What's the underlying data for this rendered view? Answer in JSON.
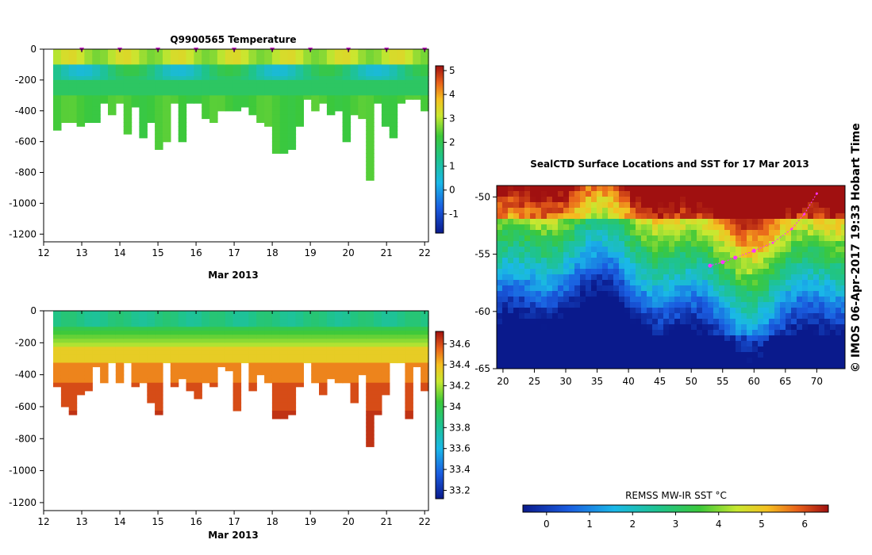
{
  "chart_data": [
    {
      "id": "temperature",
      "type": "heatmap",
      "title": "Q9900565  Temperature",
      "xlabel": "Mar 2013",
      "ylabel": "",
      "xlim": [
        12,
        22.1
      ],
      "ylim": [
        -1250,
        0
      ],
      "x_ticks": [
        "12",
        "13",
        "14",
        "15",
        "16",
        "17",
        "18",
        "19",
        "20",
        "21",
        "22"
      ],
      "y_ticks": [
        "0",
        "-200",
        "-400",
        "-600",
        "-800",
        "-1000",
        "-1200"
      ],
      "colorbar_ticks": [
        "5",
        "4",
        "3",
        "2",
        "1",
        "0",
        "-1"
      ],
      "colorbar_range": [
        -1.8,
        5.2
      ],
      "markers_days": [
        13,
        14,
        15,
        16,
        17,
        18,
        19,
        20,
        21,
        22
      ],
      "surface_value": 3.0,
      "deep_value": 2.3
    },
    {
      "id": "salinity",
      "type": "heatmap",
      "title": "",
      "xlabel": "Mar 2013",
      "ylabel": "",
      "xlim": [
        12,
        22.1
      ],
      "ylim": [
        -1250,
        0
      ],
      "x_ticks": [
        "12",
        "13",
        "14",
        "15",
        "16",
        "17",
        "18",
        "19",
        "20",
        "21",
        "22"
      ],
      "y_ticks": [
        "0",
        "-200",
        "-400",
        "-600",
        "-800",
        "-1000",
        "-1200"
      ],
      "colorbar_ticks": [
        "34.6",
        "34.4",
        "34.2",
        "34",
        "33.8",
        "33.6",
        "33.4",
        "33.2"
      ],
      "colorbar_range": [
        33.12,
        34.72
      ],
      "surface_value": 33.85,
      "deep_value": 34.6
    },
    {
      "id": "sst_map",
      "type": "heatmap",
      "title": "SealCTD Surface Locations and SST for 17 Mar 2013",
      "x_ticks": [
        "20",
        "25",
        "30",
        "35",
        "40",
        "45",
        "50",
        "55",
        "60",
        "65",
        "70"
      ],
      "y_ticks": [
        "-50",
        "-55",
        "-60",
        "-65"
      ],
      "xlim": [
        19,
        74.5
      ],
      "ylim": [
        -65,
        -49
      ],
      "colorbar_label": "REMSS MW-IR SST °C",
      "colorbar_ticks": [
        "0",
        "1",
        "2",
        "3",
        "4",
        "5",
        "6"
      ],
      "colorbar_range": [
        -0.55,
        6.55
      ],
      "track": [
        [
          70.0,
          -49.7
        ],
        [
          68.0,
          -51.5
        ],
        [
          66.0,
          -52.8
        ],
        [
          63.0,
          -54.0
        ],
        [
          60.0,
          -54.7
        ],
        [
          57.0,
          -55.3
        ],
        [
          55.0,
          -55.7
        ],
        [
          53.0,
          -56.0
        ]
      ]
    }
  ],
  "side_text": "© IMOS 06-Apr-2017 19:33 Hobart Time"
}
